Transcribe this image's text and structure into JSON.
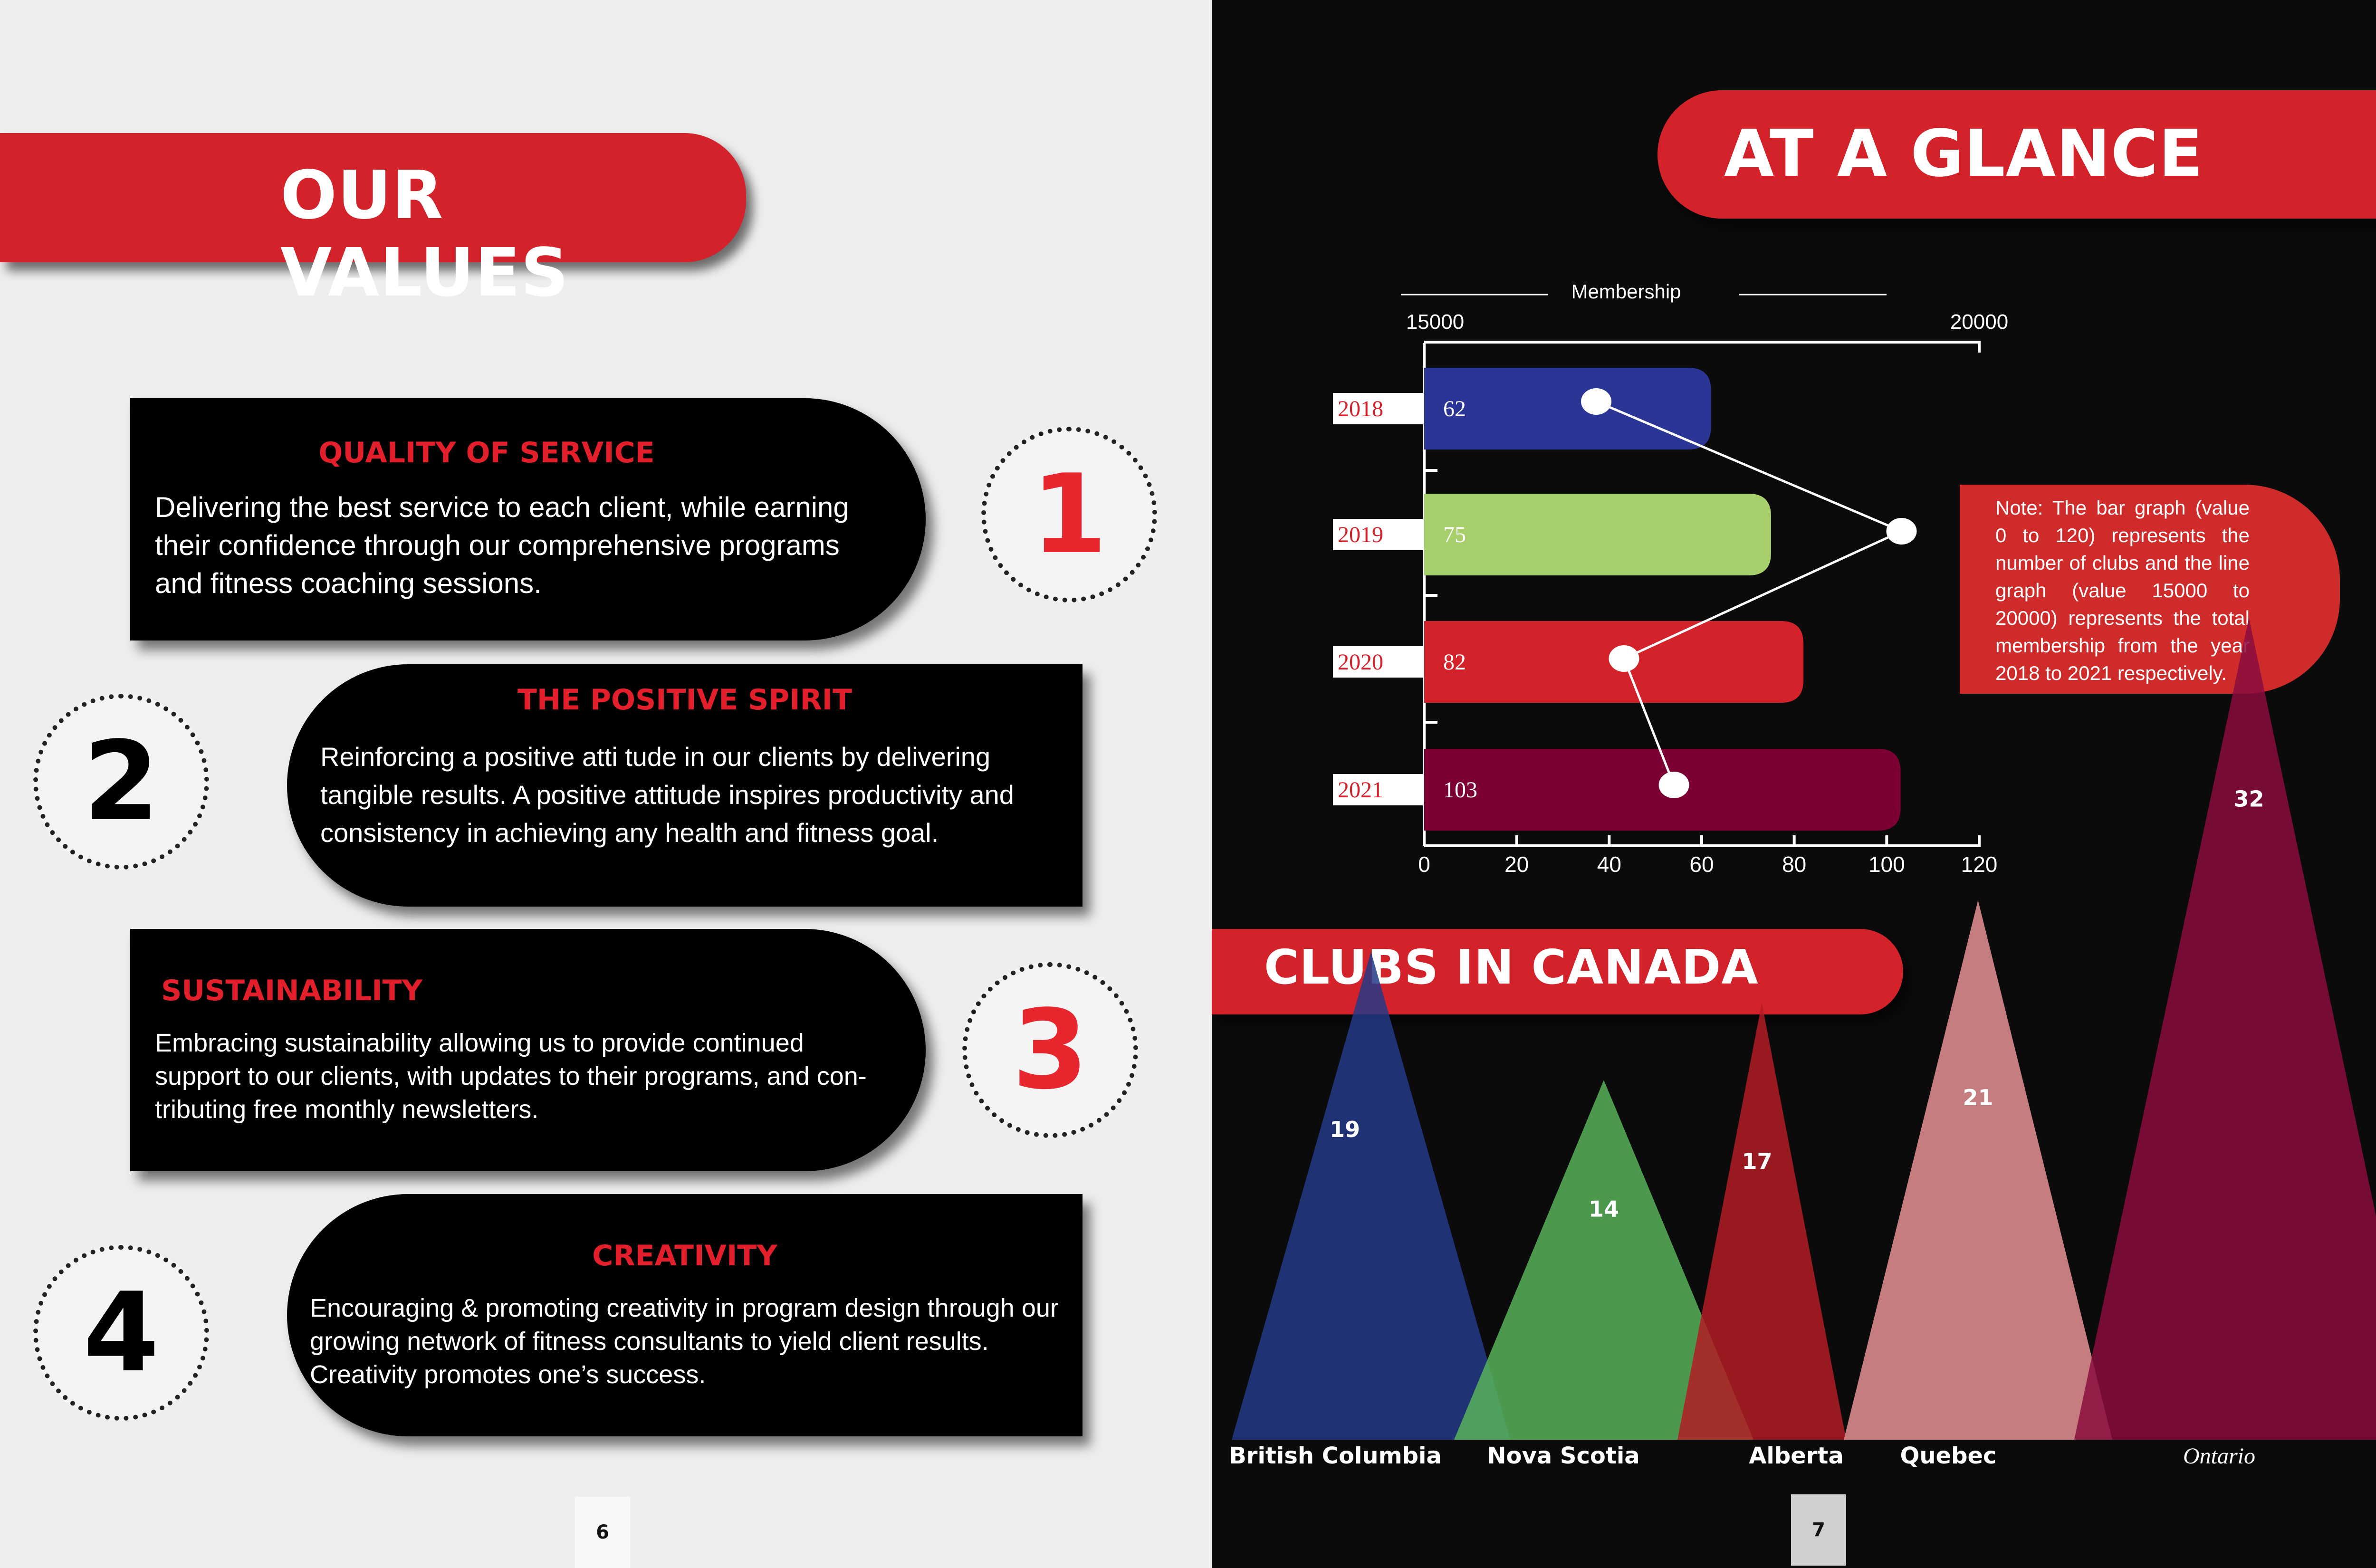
{
  "left_page": {
    "title": "OUR VALUES",
    "page_number": "6",
    "values": [
      {
        "number": "1",
        "title": "QUALITY OF SERVICE",
        "text": "Delivering the best service to each client, while earning their confidence through our comprehensive programs and fitness coaching sessions."
      },
      {
        "number": "2",
        "title": "THE POSITIVE SPIRIT",
        "text": "Reinforcing a positive atti tude in our clients by delivering tangible results. A positive attitude inspires productivity and consistency in achieving any health and fitness goal."
      },
      {
        "number": "3",
        "title": "SUSTAINABILITY",
        "text": "Embracing sustainability allowing us to provide continued support to our clients, with updates to their programs, and con- tributing free monthly newsletters."
      },
      {
        "number": "4",
        "title": "CREATIVITY",
        "text": "Encouraging & promoting creativity in program design through our growing network of fitness consultants to yield client results. Creativity promotes one’s success."
      }
    ]
  },
  "right_page": {
    "title": "AT A GLANCE",
    "page_number": "7",
    "note": "Note: The bar graph (value 0 to 120) represents the number of clubs and the line graph (value 15000 to 20000) represents the total membership from the year 2018 to 2021 respectively.",
    "clubs_title": "CLUBS IN CANADA"
  },
  "chart_data": [
    {
      "type": "bar",
      "orientation": "horizontal",
      "categories": [
        "2018",
        "2019",
        "2020",
        "2021"
      ],
      "values": [
        62,
        75,
        82,
        103
      ],
      "bar_colors": [
        "#2b3595",
        "#a7cf6b",
        "#d3222a",
        "#7d0034"
      ],
      "xlim": [
        0,
        120
      ],
      "x_ticks": [
        "0",
        "20",
        "40",
        "60",
        "80",
        "100",
        "120"
      ],
      "secondary_line": {
        "label": "Membership",
        "xlim": [
          15000,
          20000
        ],
        "top_ticks": [
          "15000",
          "20000"
        ],
        "values": [
          16550,
          19300,
          16800,
          17250
        ]
      }
    },
    {
      "type": "area",
      "title": "CLUBS IN CANADA",
      "categories": [
        "British Columbia",
        "Nova Scotia",
        "Alberta",
        "Quebec",
        "Ontario"
      ],
      "values": [
        19,
        14,
        17,
        21,
        32
      ],
      "colors": [
        "#233a86",
        "#58b35a",
        "#b31c26",
        "#f49a9e",
        "#8a0d3e"
      ]
    }
  ]
}
